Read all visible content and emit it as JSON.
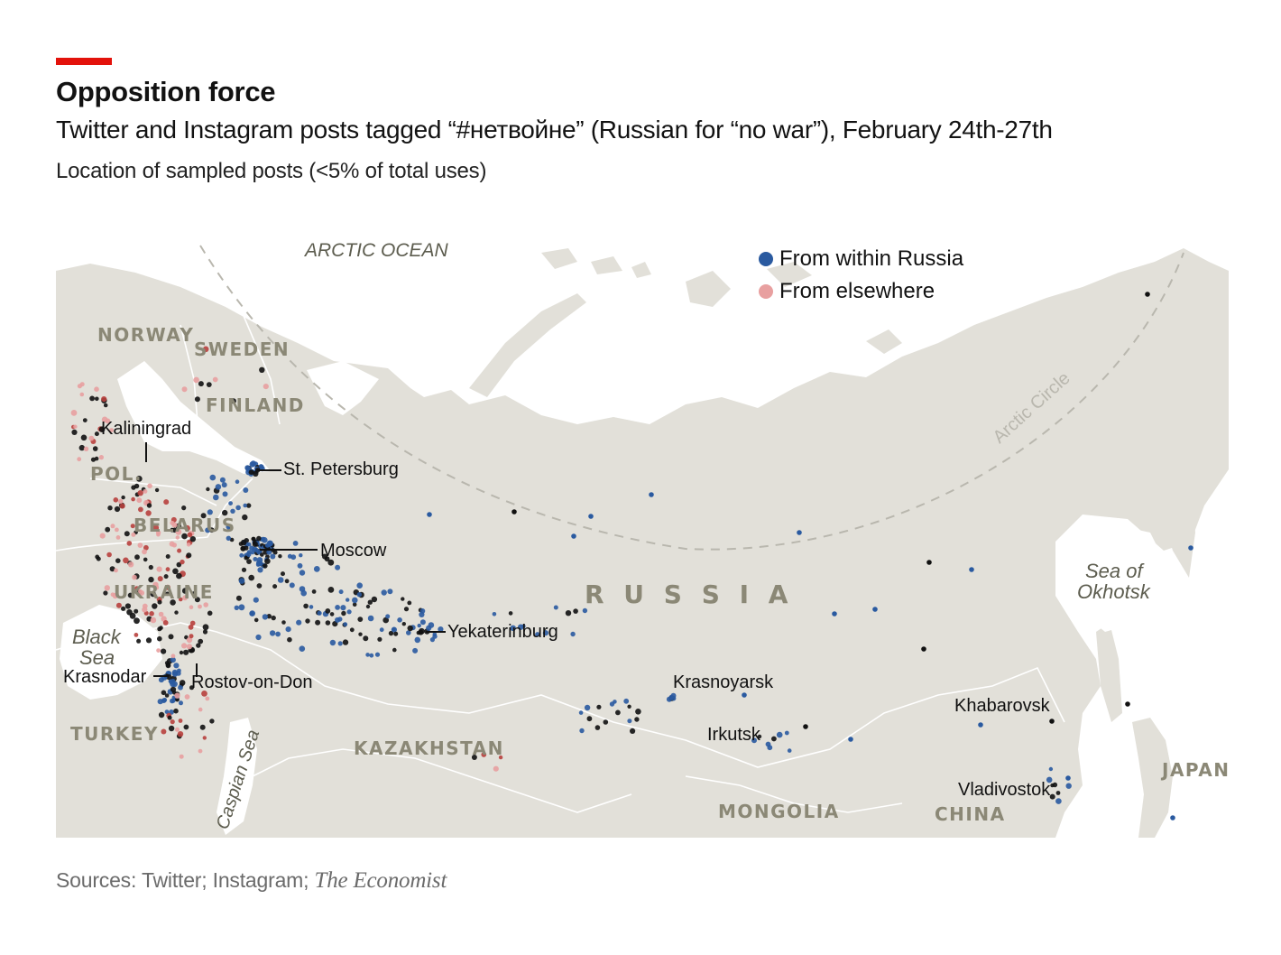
{
  "header": {
    "accent_color": "#e3120b",
    "title": "Opposition force",
    "subtitle": "Twitter and Instagram posts tagged “#нетвойне” (Russian for “no war”), February 24th-27th",
    "note": "Location of sampled posts (<5% of total uses)"
  },
  "legend": {
    "items": [
      {
        "label": "From within Russia",
        "color": "#2a5aa0"
      },
      {
        "label": "From elsewhere",
        "color": "#e8a0a0"
      }
    ]
  },
  "map": {
    "land_color": "#e2e0d9",
    "ocean_color": "#ffffff",
    "arctic_circle_label": "Arctic Circle",
    "water_labels": {
      "arctic_ocean": "ARCTIC OCEAN",
      "black_sea_line1": "Black",
      "black_sea_line2": "Sea",
      "caspian_sea": "Caspian Sea",
      "sea_of_okhotsk_line1": "Sea of",
      "sea_of_okhotsk_line2": "Okhotsk"
    },
    "countries": {
      "norway": "NORWAY",
      "sweden": "SWEDEN",
      "finland": "FINLAND",
      "poland": "POL.",
      "belarus": "BELARUS",
      "ukraine": "UKRAINE",
      "turkey": "TURKEY",
      "kazakhstan": "KAZAKHSTAN",
      "russia": "R U S S I A",
      "mongolia": "MONGOLIA",
      "china": "CHINA",
      "japan": "JAPAN"
    },
    "cities": {
      "kaliningrad": "Kaliningrad",
      "st_petersburg": "St. Petersburg",
      "moscow": "Moscow",
      "yekaterinburg": "Yekaterinburg",
      "krasnodar": "Krasnodar",
      "rostov": "Rostov-on-Don",
      "krasnoyarsk": "Krasnoyarsk",
      "irkutsk": "Irkutsk",
      "khabarovsk": "Khabarovsk",
      "vladivostok": "Vladivostok"
    }
  },
  "source": {
    "prefix": "Sources: Twitter; Instagram; ",
    "italic": "The Economist"
  }
}
